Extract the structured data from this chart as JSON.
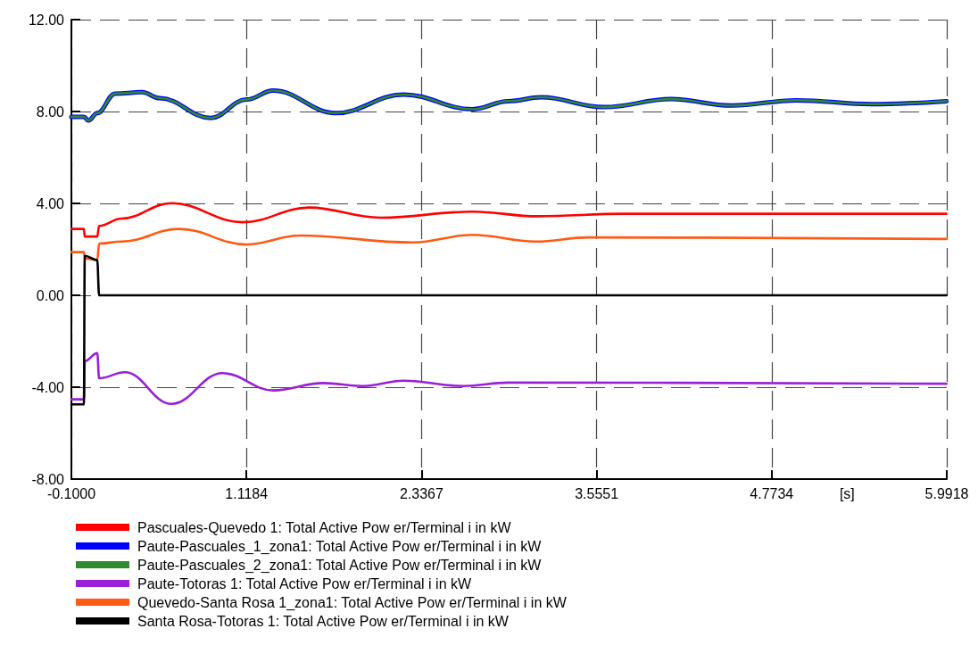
{
  "chart_data": {
    "type": "line",
    "xlabel": "[s]",
    "xlim": [
      -0.1,
      5.9918
    ],
    "xticks": [
      {
        "value": -0.1,
        "label": "-0.1000"
      },
      1.1184,
      2.3367,
      3.5551,
      4.7734,
      5.9918
    ],
    "ylim": [
      -8,
      12
    ],
    "yticks": [
      {
        "value": -8,
        "label": "-8.00"
      },
      {
        "value": -4,
        "label": "-4.00"
      },
      {
        "value": 0,
        "label": "0.00"
      },
      {
        "value": 4,
        "label": "4.00"
      },
      {
        "value": 8,
        "label": "8.00"
      },
      {
        "value": 12,
        "label": "12.00"
      }
    ],
    "grid": true,
    "legend": "bottom",
    "marker": "none",
    "line_style": "solid",
    "series": [
      {
        "name": "Pascuales-Quevedo 1: Total Active Pow er/Terminal i in kW",
        "color": "#ff0000",
        "x": [
          -0.1,
          -0.013,
          -0.007,
          0.08,
          0.093,
          0.248,
          0.596,
          1.093,
          1.553,
          2.051,
          2.691,
          3.145,
          3.748,
          5.99
        ],
        "values": [
          2.89,
          2.89,
          2.56,
          2.56,
          3.02,
          3.34,
          4.01,
          3.18,
          3.82,
          3.38,
          3.64,
          3.44,
          3.55,
          3.55
        ]
      },
      {
        "name": "Paute-Pascuales_1_zona1: Total Active Pow er/Terminal i in kW",
        "color": "#0000ff",
        "x": [
          -0.1,
          -0.013,
          0.018,
          0.08,
          0.205,
          0.391,
          0.515,
          0.87,
          1.118,
          1.305,
          1.74,
          2.212,
          2.691,
          2.94,
          3.17,
          3.605,
          4.077,
          4.494,
          4.947,
          5.47,
          5.99
        ],
        "values": [
          7.77,
          7.77,
          7.61,
          7.93,
          8.78,
          8.84,
          8.58,
          7.72,
          8.52,
          8.91,
          7.93,
          8.74,
          8.1,
          8.45,
          8.62,
          8.19,
          8.54,
          8.26,
          8.49,
          8.32,
          8.45
        ]
      },
      {
        "name": "Paute-Pascuales_2_zona1: Total Active Pow er/Terminal i in kW",
        "color": "#2e8b2e",
        "x": [
          -0.1,
          -0.013,
          0.018,
          0.08,
          0.205,
          0.391,
          0.515,
          0.87,
          1.118,
          1.305,
          1.74,
          2.212,
          2.691,
          2.94,
          3.17,
          3.605,
          4.077,
          4.494,
          4.947,
          5.47,
          5.99
        ],
        "values": [
          7.77,
          7.77,
          7.61,
          7.93,
          8.78,
          8.84,
          8.58,
          7.72,
          8.52,
          8.91,
          7.93,
          8.74,
          8.1,
          8.45,
          8.62,
          8.19,
          8.54,
          8.26,
          8.49,
          8.32,
          8.45
        ]
      },
      {
        "name": "Paute-Totoras 1: Total Active Pow er/Terminal i in kW",
        "color": "#9a1fd6",
        "x": [
          -0.1,
          -0.013,
          -0.007,
          0.08,
          0.093,
          0.273,
          0.596,
          0.95,
          1.305,
          1.653,
          1.926,
          2.212,
          2.629,
          2.94,
          5.99
        ],
        "values": [
          -4.53,
          -4.53,
          -2.87,
          -2.52,
          -3.61,
          -3.35,
          -4.73,
          -3.39,
          -4.14,
          -3.82,
          -3.95,
          -3.72,
          -3.95,
          -3.8,
          -3.85
        ]
      },
      {
        "name": "Quevedo-Santa Rosa 1_zona1: Total Active Pow er/Terminal i in kW",
        "color": "#ff5a14",
        "x": [
          -0.1,
          -0.013,
          -0.007,
          0.08,
          0.093,
          0.248,
          0.65,
          1.118,
          1.491,
          2.274,
          2.691,
          3.13,
          3.5,
          5.99
        ],
        "values": [
          1.88,
          1.88,
          1.6,
          1.55,
          2.25,
          2.34,
          2.89,
          2.21,
          2.6,
          2.3,
          2.63,
          2.34,
          2.52,
          2.45
        ]
      },
      {
        "name": "Santa Rosa-Totoras 1: Total Active Pow er/Terminal i in kW",
        "color": "#000000",
        "x": [
          -0.1,
          -0.013,
          -0.007,
          0.08,
          0.093,
          5.99
        ],
        "values": [
          -4.75,
          -4.75,
          1.72,
          1.53,
          0,
          0
        ]
      }
    ]
  }
}
